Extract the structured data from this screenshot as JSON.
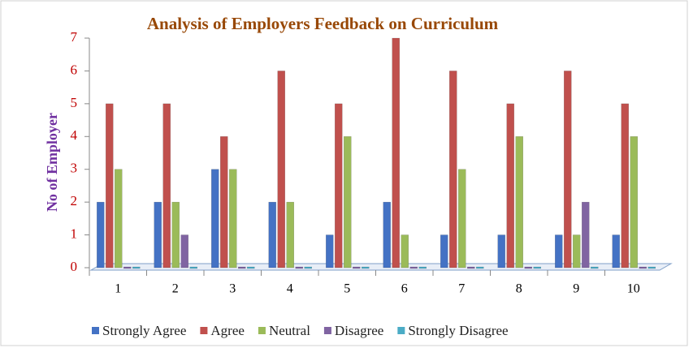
{
  "chart_data": {
    "type": "bar",
    "title": "Analysis of Employers Feedback on Curriculum",
    "y_label": "No of Employer",
    "categories": [
      "1",
      "2",
      "3",
      "4",
      "5",
      "6",
      "7",
      "8",
      "9",
      "10"
    ],
    "series": [
      {
        "name": "Strongly Agree",
        "color": "#4472c4",
        "values": [
          2,
          2,
          3,
          2,
          1,
          2,
          1,
          1,
          1,
          1
        ]
      },
      {
        "name": "Agree",
        "color": "#c0504d",
        "values": [
          5,
          5,
          4,
          6,
          5,
          7,
          6,
          5,
          6,
          5
        ]
      },
      {
        "name": "Neutral",
        "color": "#9bbb59",
        "values": [
          3,
          2,
          3,
          2,
          4,
          1,
          3,
          4,
          1,
          4
        ]
      },
      {
        "name": "Disagree",
        "color": "#8064a2",
        "values": [
          0,
          1,
          0,
          0,
          0,
          0,
          0,
          0,
          2,
          0
        ]
      },
      {
        "name": "Strongly Disagree",
        "color": "#4bacc6",
        "values": [
          0,
          0,
          0,
          0,
          0,
          0,
          0,
          0,
          0,
          0
        ]
      }
    ],
    "ylim": [
      0,
      7
    ],
    "yticks": [
      0,
      1,
      2,
      3,
      4,
      5,
      6,
      7
    ],
    "legend": "bottom"
  }
}
